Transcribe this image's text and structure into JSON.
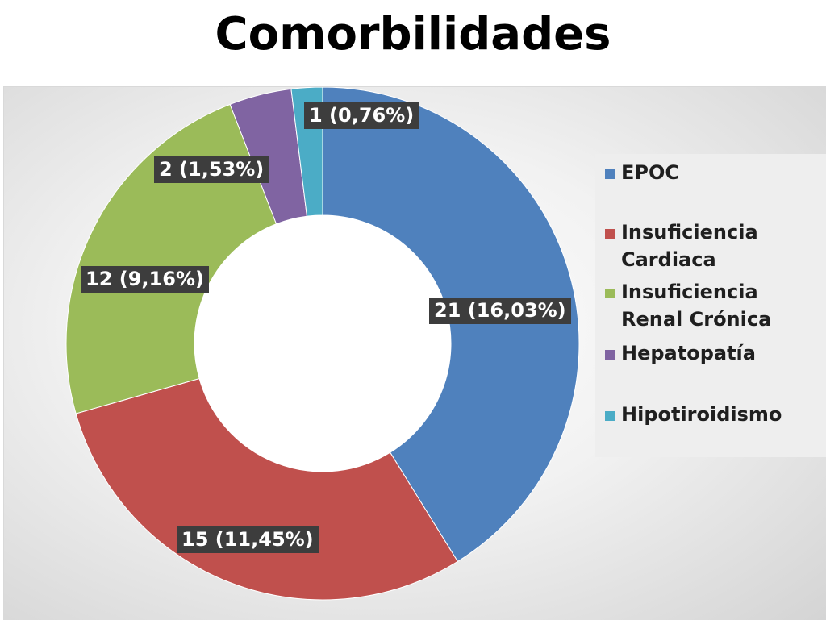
{
  "chart_data": {
    "type": "pie",
    "title": "Comorbilidades",
    "categories": [
      "EPOC",
      "Insuficiencia Cardiaca",
      "Insuficiencia Renal Crónica",
      "Hepatopatía",
      "Hipotiroidismo"
    ],
    "values": [
      21,
      15,
      12,
      2,
      1
    ],
    "data_labels": [
      "21 (16,03%)",
      "15 (11,45%)",
      "12 (9,16%)",
      "2 (1,53%)",
      "1 (0,76%)"
    ],
    "colors": [
      "#4f81bd",
      "#c0504d",
      "#9bbb59",
      "#8064a2",
      "#4bacc6"
    ],
    "donut": true,
    "legend_position": "right"
  },
  "legend": {
    "items": [
      {
        "line1": "EPOC",
        "line2": ""
      },
      {
        "line1": "Insuficiencia",
        "line2": "Cardiaca"
      },
      {
        "line1": "Insuficiencia",
        "line2": "Renal Crónica"
      },
      {
        "line1": "Hepatopatía",
        "line2": ""
      },
      {
        "line1": "Hipotiroidismo",
        "line2": ""
      }
    ]
  }
}
